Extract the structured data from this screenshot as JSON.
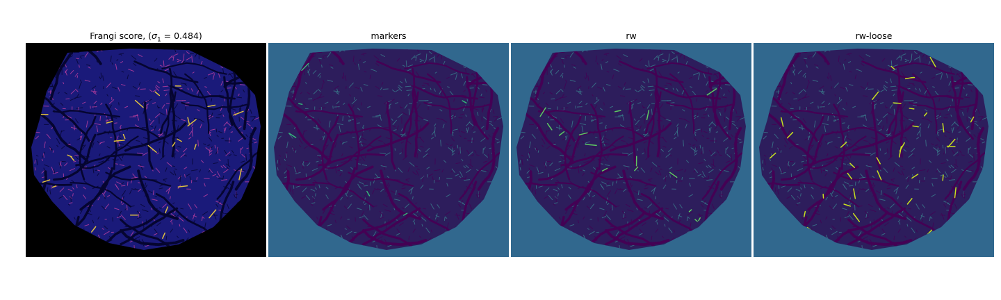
{
  "panels": [
    {
      "id": "frangi",
      "title_prefix": "Frangi score, (",
      "title_sigma": "σ",
      "title_sub": "1",
      "title_suffix": " = 0.484)",
      "background": "#000000",
      "tissue": "#1a1a7a",
      "vessel": "#050530",
      "highlight": "#e0c040",
      "accent": "#c040a0"
    },
    {
      "id": "markers",
      "title": "markers",
      "background": "#31688e",
      "tissue": "#2d1d5c",
      "vessel": "#440154",
      "highlight": "#35b779",
      "accent": "#3a7d8c"
    },
    {
      "id": "rw",
      "title": "rw",
      "background": "#31688e",
      "tissue": "#2d1d5c",
      "vessel": "#440154",
      "highlight": "#5ec962",
      "accent": "#3a7d8c"
    },
    {
      "id": "rw-loose",
      "title": "rw-loose",
      "background": "#31688e",
      "tissue": "#2d1d5c",
      "vessel": "#440154",
      "highlight": "#c8e020",
      "accent": "#3a7d8c"
    }
  ]
}
